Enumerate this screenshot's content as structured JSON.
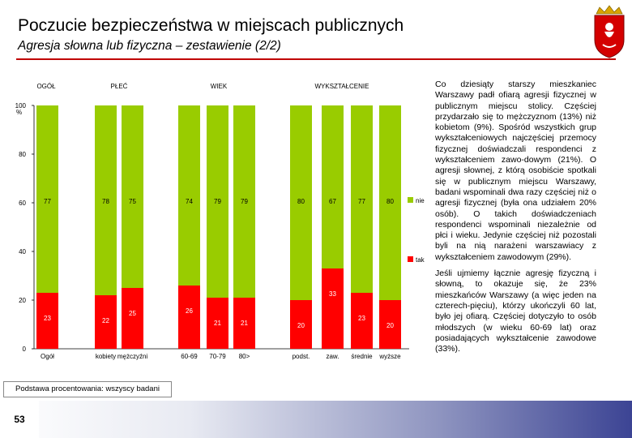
{
  "header": {
    "title": "Poczucie bezpieczeństwa w miejscach publicznych",
    "subtitle": "Agresja słowna lub fizyczna – zestawienie (2/2)"
  },
  "colors": {
    "nie": "#99cc00",
    "tak": "#ff0000",
    "accent": "#c00000"
  },
  "chart_data": {
    "type": "bar",
    "stacked": true,
    "groups": [
      "OGÓŁ",
      "PŁEĆ",
      "WIEK",
      "WYKSZTAŁCENIE"
    ],
    "categories": [
      "Ogół",
      "kobiety",
      "mężczyźni",
      "60-69",
      "70-79",
      "80>",
      "podst.",
      "zaw.",
      "średnie",
      "wyższe"
    ],
    "series": [
      {
        "name": "tak",
        "values": [
          23,
          22,
          25,
          26,
          21,
          21,
          20,
          33,
          23,
          20
        ]
      },
      {
        "name": "nie",
        "values": [
          77,
          78,
          75,
          74,
          79,
          79,
          80,
          67,
          77,
          80
        ]
      }
    ],
    "yticks": [
      "0",
      "20",
      "40",
      "60",
      "80",
      "100"
    ],
    "yunit": "%",
    "ylim": [
      0,
      100
    ],
    "legend": "right"
  },
  "description": {
    "p1": "Co dziesiąty starszy mieszkaniec Warszawy padł ofiarą agresji fizycznej w publicznym miejscu stolicy. Częściej przydarzało się to mężczyznom (13%) niż kobietom (9%). Spośród wszystkich grup wykształceniowych najczęściej przemocy fizycznej doświadczali respondenci z wykształceniem zawo-dowym (21%). O agresji słownej, z którą osobiście spotkali się w publicznym miejscu Warszawy, badani wspominali dwa razy częściej niż o agresji fizycznej (była ona udziałem 20% osób). O takich doświadczeniach respondenci wspominali niezależnie od płci i wieku. Jedynie częściej niż pozostali byli na nią narażeni warszawiacy z wykształceniem zawodowym (29%).",
    "p2": "Jeśli ujmiemy łącznie agresję fizyczną i słowną, to okazuje się, że 23% mieszkańców Warszawy (a więc jeden na czterech-pięciu), którzy ukończyli 60 lat, było jej ofiarą. Częściej dotyczyło to osób młodszych (w wieku 60-69 lat) oraz posiadających wykształcenie zawodowe (33%)."
  },
  "footer": {
    "base_note": "Podstawa procentowania: wszyscy badani",
    "page_number": "53"
  }
}
